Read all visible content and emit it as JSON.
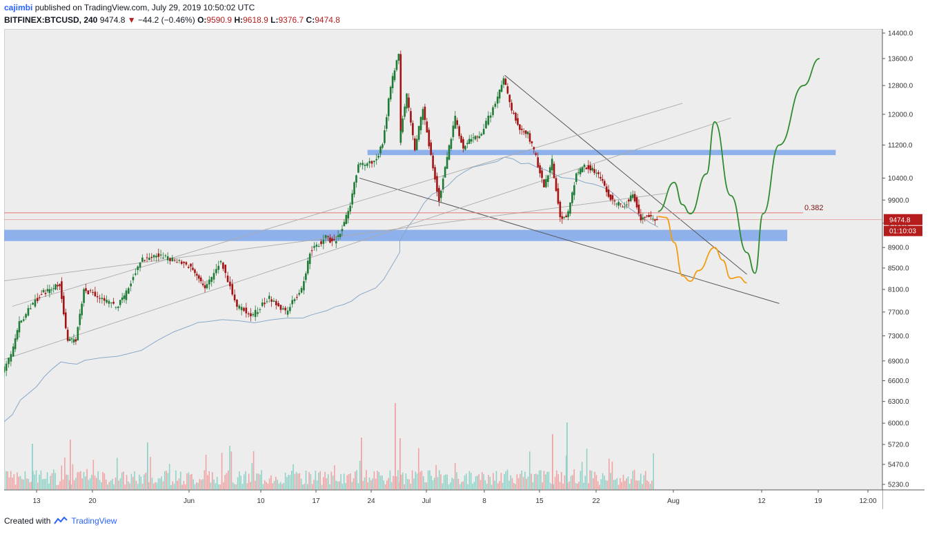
{
  "header": {
    "author": "cajimbi",
    "published_text": "published on TradingView.com, July 29, 2019 10:50:02 UTC"
  },
  "ticker": {
    "symbol": "BITFINEX:BTCUSD, 240",
    "last": "9474.8",
    "change": "−44.2 (−0.46%)",
    "open_label": "O:",
    "open": "9590.9",
    "high_label": "H:",
    "high": "9618.9",
    "low_label": "L:",
    "low": "9376.7",
    "close_label": "C:",
    "close": "9474.8"
  },
  "footer": {
    "created_with": "Created with",
    "brand": "TradingView"
  },
  "colors": {
    "background": "#ededed",
    "bull": "#1e7a35",
    "bear": "#a31212",
    "vol_bull": "#8fd3c8",
    "vol_bear": "#f1a3a3",
    "zone": "#7da4ea",
    "green_path": "#2e8b2e",
    "orange_path": "#f39c12",
    "fib_line": "#e57373",
    "ma_line": "#8aa8c8"
  },
  "chart_data": {
    "type": "candlestick",
    "symbol": "BITFINEX:BTCUSD",
    "timeframe": "240",
    "y_scale": "log",
    "ylim": [
      5150,
      14500
    ],
    "y_ticks": [
      "14400.0",
      "13600.0",
      "12800.0",
      "12000.0",
      "11200.0",
      "10400.0",
      "9900.0",
      "9400.0",
      "8900.0",
      "8500.0",
      "8100.0",
      "7700.0",
      "7300.0",
      "6900.0",
      "6600.0",
      "6300.0",
      "6000.0",
      "5720.0",
      "5470.0",
      "5230.0"
    ],
    "x_ticks": [
      "13",
      "20",
      "Jun",
      "10",
      "17",
      "24",
      "Jul",
      "8",
      "15",
      "22",
      "Aug",
      "12",
      "19",
      "12:00"
    ],
    "price_label": "9474.8",
    "countdown_label": "01:10:03",
    "fib_label": "0.382",
    "fib_level": 9620,
    "current_price": 9474.8,
    "price_path": [
      {
        "date": "2019-05-06",
        "p": 6250
      },
      {
        "date": "2019-05-08",
        "p": 6500
      },
      {
        "date": "2019-05-10",
        "p": 7000
      },
      {
        "date": "2019-05-11",
        "p": 7500
      },
      {
        "date": "2019-05-13",
        "p": 7900
      },
      {
        "date": "2019-05-14",
        "p": 8050
      },
      {
        "date": "2019-05-15",
        "p": 8100
      },
      {
        "date": "2019-05-16",
        "p": 8200
      },
      {
        "date": "2019-05-17",
        "p": 7200
      },
      {
        "date": "2019-05-18",
        "p": 7250
      },
      {
        "date": "2019-05-19",
        "p": 8100
      },
      {
        "date": "2019-05-21",
        "p": 7950
      },
      {
        "date": "2019-05-23",
        "p": 7800
      },
      {
        "date": "2019-05-24",
        "p": 7950
      },
      {
        "date": "2019-05-26",
        "p": 8650
      },
      {
        "date": "2019-05-28",
        "p": 8750
      },
      {
        "date": "2019-05-30",
        "p": 8650
      },
      {
        "date": "2019-06-01",
        "p": 8550
      },
      {
        "date": "2019-06-02",
        "p": 8400
      },
      {
        "date": "2019-06-03",
        "p": 8100
      },
      {
        "date": "2019-06-05",
        "p": 8650
      },
      {
        "date": "2019-06-07",
        "p": 7800
      },
      {
        "date": "2019-06-09",
        "p": 7650
      },
      {
        "date": "2019-06-11",
        "p": 7950
      },
      {
        "date": "2019-06-13",
        "p": 7700
      },
      {
        "date": "2019-06-15",
        "p": 8100
      },
      {
        "date": "2019-06-16",
        "p": 8800
      },
      {
        "date": "2019-06-18",
        "p": 9100
      },
      {
        "date": "2019-06-19",
        "p": 9000
      },
      {
        "date": "2019-06-20",
        "p": 9300
      },
      {
        "date": "2019-06-21",
        "p": 9800
      },
      {
        "date": "2019-06-22",
        "p": 10700
      },
      {
        "date": "2019-06-24",
        "p": 10800
      },
      {
        "date": "2019-06-25",
        "p": 11200
      },
      {
        "date": "2019-06-26",
        "p": 12800
      },
      {
        "date": "2019-06-27",
        "p": 13700
      },
      {
        "date": "2019-06-27",
        "p": 11300
      },
      {
        "date": "2019-06-28",
        "p": 12500
      },
      {
        "date": "2019-06-29",
        "p": 11100
      },
      {
        "date": "2019-06-30",
        "p": 12200
      },
      {
        "date": "2019-07-01",
        "p": 10900
      },
      {
        "date": "2019-07-02",
        "p": 9900
      },
      {
        "date": "2019-07-03",
        "p": 10900
      },
      {
        "date": "2019-07-04",
        "p": 11900
      },
      {
        "date": "2019-07-05",
        "p": 11100
      },
      {
        "date": "2019-07-06",
        "p": 11400
      },
      {
        "date": "2019-07-07",
        "p": 11400
      },
      {
        "date": "2019-07-09",
        "p": 12300
      },
      {
        "date": "2019-07-10",
        "p": 13000
      },
      {
        "date": "2019-07-11",
        "p": 12100
      },
      {
        "date": "2019-07-12",
        "p": 11600
      },
      {
        "date": "2019-07-13",
        "p": 11500
      },
      {
        "date": "2019-07-14",
        "p": 10900
      },
      {
        "date": "2019-07-15",
        "p": 10200
      },
      {
        "date": "2019-07-16",
        "p": 10800
      },
      {
        "date": "2019-07-17",
        "p": 9500
      },
      {
        "date": "2019-07-18",
        "p": 9600
      },
      {
        "date": "2019-07-19",
        "p": 10500
      },
      {
        "date": "2019-07-20",
        "p": 10700
      },
      {
        "date": "2019-07-21",
        "p": 10600
      },
      {
        "date": "2019-07-22",
        "p": 10400
      },
      {
        "date": "2019-07-23",
        "p": 10000
      },
      {
        "date": "2019-07-24",
        "p": 9800
      },
      {
        "date": "2019-07-25",
        "p": 9800
      },
      {
        "date": "2019-07-26",
        "p": 10050
      },
      {
        "date": "2019-07-27",
        "p": 9500
      },
      {
        "date": "2019-07-28",
        "p": 9550
      },
      {
        "date": "2019-07-29",
        "p": 9474.8
      }
    ],
    "projection_bearish": [
      {
        "date": "2019-07-29",
        "p": 9540
      },
      {
        "date": "2019-07-30",
        "p": 9520
      },
      {
        "date": "2019-07-31",
        "p": 9000
      },
      {
        "date": "2019-08-01",
        "p": 8350
      },
      {
        "date": "2019-08-02",
        "p": 8250
      },
      {
        "date": "2019-08-03",
        "p": 8450
      },
      {
        "date": "2019-08-05",
        "p": 8900
      },
      {
        "date": "2019-08-06",
        "p": 8650
      },
      {
        "date": "2019-08-07",
        "p": 8300
      },
      {
        "date": "2019-08-08",
        "p": 8330
      },
      {
        "date": "2019-08-09",
        "p": 8220
      }
    ],
    "projection_bullish": [
      {
        "date": "2019-07-29",
        "p": 9650
      },
      {
        "date": "2019-07-31",
        "p": 10300
      },
      {
        "date": "2019-08-01",
        "p": 9800
      },
      {
        "date": "2019-08-02",
        "p": 9600
      },
      {
        "date": "2019-08-04",
        "p": 10500
      },
      {
        "date": "2019-08-05",
        "p": 11800
      },
      {
        "date": "2019-08-07",
        "p": 10000
      },
      {
        "date": "2019-08-09",
        "p": 8800
      },
      {
        "date": "2019-08-10",
        "p": 8400
      },
      {
        "date": "2019-08-11",
        "p": 9600
      },
      {
        "date": "2019-08-13",
        "p": 11200
      },
      {
        "date": "2019-08-16",
        "p": 12800
      },
      {
        "date": "2019-08-18",
        "p": 13600
      }
    ],
    "zones": [
      {
        "from": "2019-06-23",
        "to": "2019-08-20",
        "low": 10950,
        "high": 11080
      },
      {
        "from": "2019-05-06",
        "to": "2019-08-14",
        "low": 9030,
        "high": 9260
      }
    ],
    "trendlines": [
      {
        "x1": "2019-06-22",
        "y1": 10400,
        "x2": "2019-08-13",
        "y2": 7850
      },
      {
        "x1": "2019-07-10",
        "y1": 13100,
        "x2": "2019-08-09",
        "y2": 8380
      },
      {
        "x1": "2019-05-06",
        "y1": 6800,
        "x2": "2019-08-07",
        "y2": 11900
      },
      {
        "x1": "2019-05-10",
        "y1": 7800,
        "x2": "2019-08-01",
        "y2": 12300
      },
      {
        "x1": "2019-05-06",
        "y1": 8200,
        "x2": "2019-07-30",
        "y2": 10050
      }
    ]
  }
}
